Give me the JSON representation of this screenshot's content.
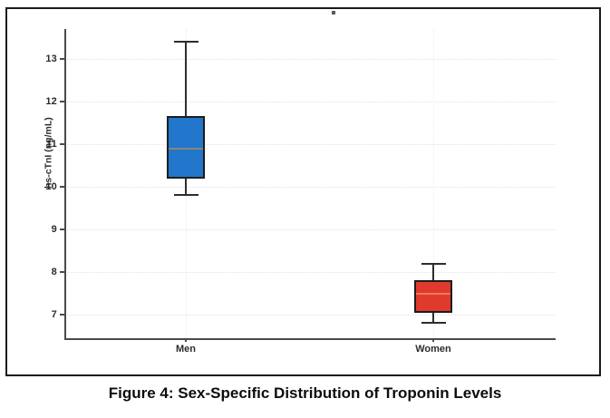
{
  "figure": {
    "caption": "Figure 4: Sex-Specific Distribution of Troponin Levels"
  },
  "chart_data": {
    "type": "boxplot",
    "title": "",
    "caption": "Figure 4: Sex-Specific Distribution of Troponin Levels",
    "xlabel": "",
    "ylabel": "hs-cTnI (ng/mL)",
    "categories": [
      "Men",
      "Women"
    ],
    "yticks": [
      7,
      8,
      9,
      10,
      11,
      12,
      13
    ],
    "ylim": [
      6.45,
      13.7
    ],
    "grid": true,
    "legend": "none",
    "series": [
      {
        "name": "Men",
        "whisker_low": 9.8,
        "q1": 10.2,
        "median": 10.9,
        "q3": 11.65,
        "whisker_high": 13.4,
        "box_color": "#2277cc",
        "median_color": "#8a8578",
        "edge_color": "#1c1c1c"
      },
      {
        "name": "Women",
        "whisker_low": 6.8,
        "q1": 7.05,
        "median": 7.5,
        "q3": 7.8,
        "whisker_high": 8.2,
        "box_color": "#e0392e",
        "median_color": "#ef7a52",
        "edge_color": "#1c1c1c"
      }
    ],
    "colors": {
      "frame_border": "#1a1a1a",
      "axis": "#4a4a4a",
      "gridline": "#e2e2e2",
      "tick_text": "#2b2b2b"
    }
  }
}
